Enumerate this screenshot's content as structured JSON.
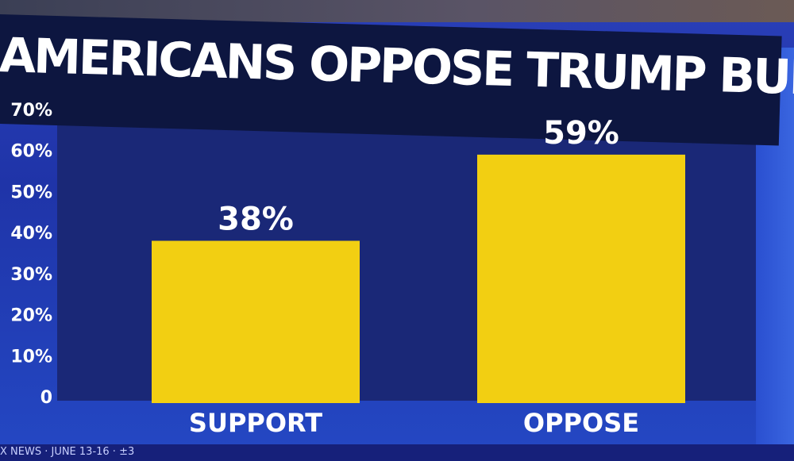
{
  "chart_data": {
    "type": "bar",
    "title": "AMERICANS OPPOSE TRUMP BUDGET BILL",
    "categories": [
      "SUPPORT",
      "OPPOSE"
    ],
    "values": [
      38,
      59
    ],
    "value_labels": [
      "38%",
      "59%"
    ],
    "ylim": [
      0,
      70
    ],
    "yticks": [
      0,
      10,
      20,
      30,
      40,
      50,
      60,
      70
    ],
    "ytick_labels": [
      "0",
      "10%",
      "20%",
      "30%",
      "40%",
      "50%",
      "60%",
      "70%"
    ],
    "xlabel": "",
    "ylabel": "",
    "bar_color": "#f2cf12",
    "grid": false
  },
  "ticker": {
    "text": "X NEWS · JUNE 13-16 · ±3"
  }
}
